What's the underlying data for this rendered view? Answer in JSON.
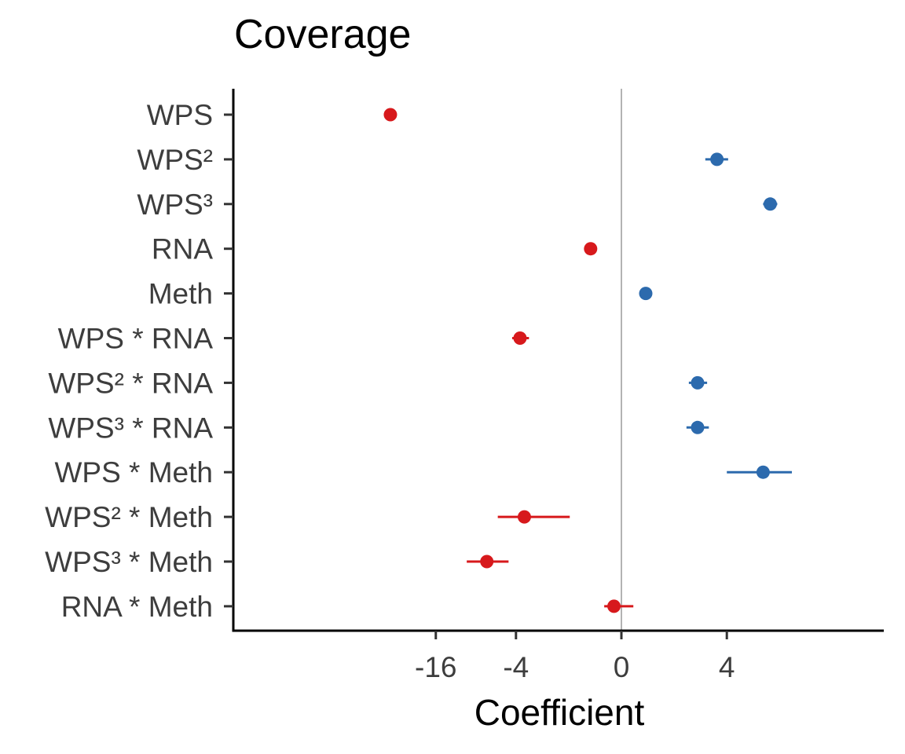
{
  "chart_data": {
    "type": "scatter",
    "title": "Coverage",
    "xlabel": "Coefficient",
    "ylabel": "",
    "x_scale": "pseudo-log (signed)",
    "x_tick_labels": [
      "-16",
      "-4",
      "0",
      "4"
    ],
    "x_ticks": [
      -16,
      -4,
      0,
      4
    ],
    "grid": false,
    "reference_line": 0,
    "colors": {
      "negative": "#d7191c",
      "positive": "#2c6aad",
      "reference_line": "#b3b3b3"
    },
    "categories": [
      "WPS",
      "WPS²",
      "WPS³",
      "RNA",
      "Meth",
      "WPS * RNA",
      "WPS² * RNA",
      "WPS³ * RNA",
      "WPS * Meth",
      "WPS² * Meth",
      "WPS³ * Meth",
      "RNA * Meth"
    ],
    "points": [
      {
        "term": "WPS",
        "estimate": -33.0,
        "lower": -33.0,
        "upper": -33.0
      },
      {
        "term": "WPS²",
        "estimate": 3.3,
        "lower": 2.6,
        "upper": 4.1
      },
      {
        "term": "WPS³",
        "estimate": 8.7,
        "lower": 7.7,
        "upper": 9.8
      },
      {
        "term": "RNA",
        "estimate": -0.6,
        "lower": -0.6,
        "upper": -0.6
      },
      {
        "term": "Meth",
        "estimate": 0.45,
        "lower": 0.45,
        "upper": 0.45
      },
      {
        "term": "WPS * RNA",
        "estimate": -3.7,
        "lower": -4.3,
        "upper": -3.1
      },
      {
        "term": "WPS² * RNA",
        "estimate": 2.2,
        "lower": 1.8,
        "upper": 2.7
      },
      {
        "term": "WPS³ * RNA",
        "estimate": 2.2,
        "lower": 1.7,
        "upper": 2.8
      },
      {
        "term": "WPS * Meth",
        "estimate": 7.7,
        "lower": 4.0,
        "upper": 12.5
      },
      {
        "term": "WPS² * Meth",
        "estimate": -3.4,
        "lower": -5.6,
        "upper": -1.2
      },
      {
        "term": "WPS³ * Meth",
        "estimate": -6.8,
        "lower": -9.6,
        "upper": -4.6
      },
      {
        "term": "RNA * Meth",
        "estimate": -0.12,
        "lower": -0.3,
        "upper": 0.2
      }
    ]
  }
}
